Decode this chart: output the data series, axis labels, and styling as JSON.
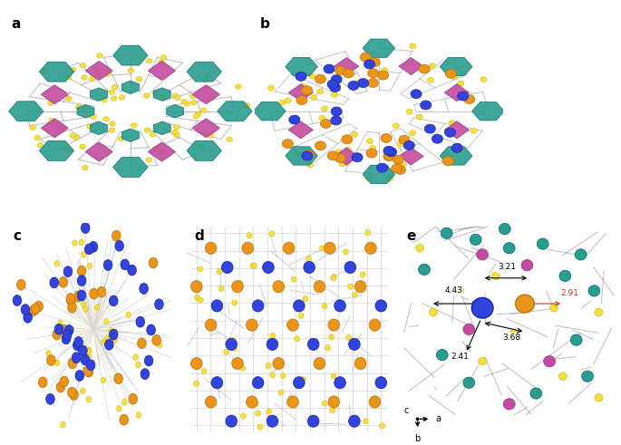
{
  "figure_width": 6.85,
  "figure_height": 4.91,
  "dpi": 100,
  "background_color": "#ffffff",
  "panel_labels": [
    "a",
    "b",
    "c",
    "d",
    "e"
  ],
  "panel_label_fontsize": 11,
  "panel_label_fontweight": "bold",
  "panel_positions": {
    "a": [
      0.01,
      0.52,
      0.4,
      0.46
    ],
    "b": [
      0.41,
      0.52,
      0.4,
      0.46
    ],
    "c": [
      0.01,
      0.02,
      0.28,
      0.48
    ],
    "d": [
      0.3,
      0.02,
      0.33,
      0.48
    ],
    "e": [
      0.64,
      0.02,
      0.36,
      0.48
    ]
  },
  "colors": {
    "teal": "#2a9d8f",
    "magenta": "#c44b9f",
    "yellow": "#f7e03c",
    "gray": "#aaaaaa",
    "navy": "#3344dd",
    "orange": "#e8951a",
    "white": "#ffffff",
    "dark_gray": "#555555"
  }
}
